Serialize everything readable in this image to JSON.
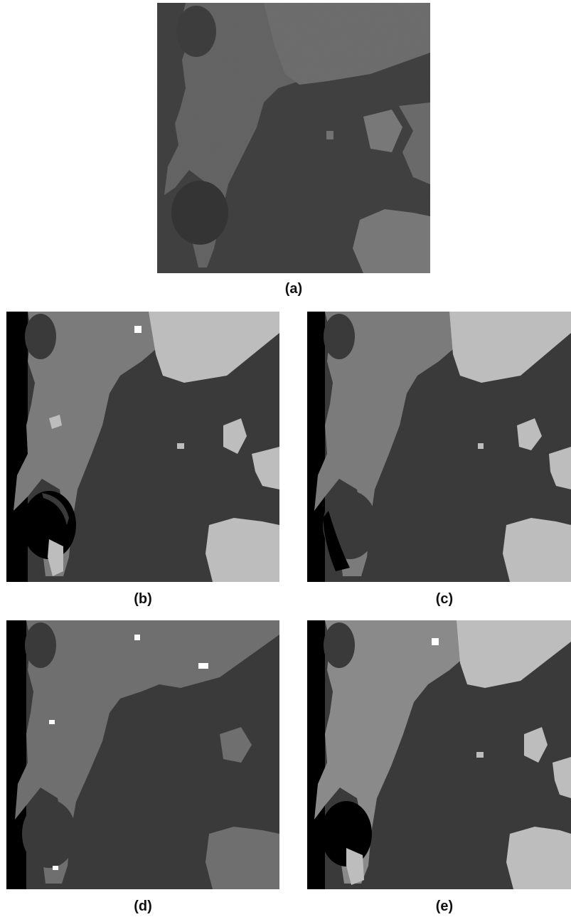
{
  "figure": {
    "panels": [
      {
        "id": "a",
        "caption": "(a)",
        "kind": "satellite-image"
      },
      {
        "id": "b",
        "caption": "(b)",
        "kind": "classified-map"
      },
      {
        "id": "c",
        "caption": "(c)",
        "kind": "classified-map"
      },
      {
        "id": "d",
        "caption": "(d)",
        "kind": "classified-map"
      },
      {
        "id": "e",
        "caption": "(e)",
        "kind": "classified-map"
      }
    ],
    "colors": {
      "water": "#3a3a3a",
      "deep_water": "#000000",
      "land_mid": "#7a7a7a",
      "land_light": "#bdbdbd",
      "built_up": "#ffffff"
    }
  }
}
